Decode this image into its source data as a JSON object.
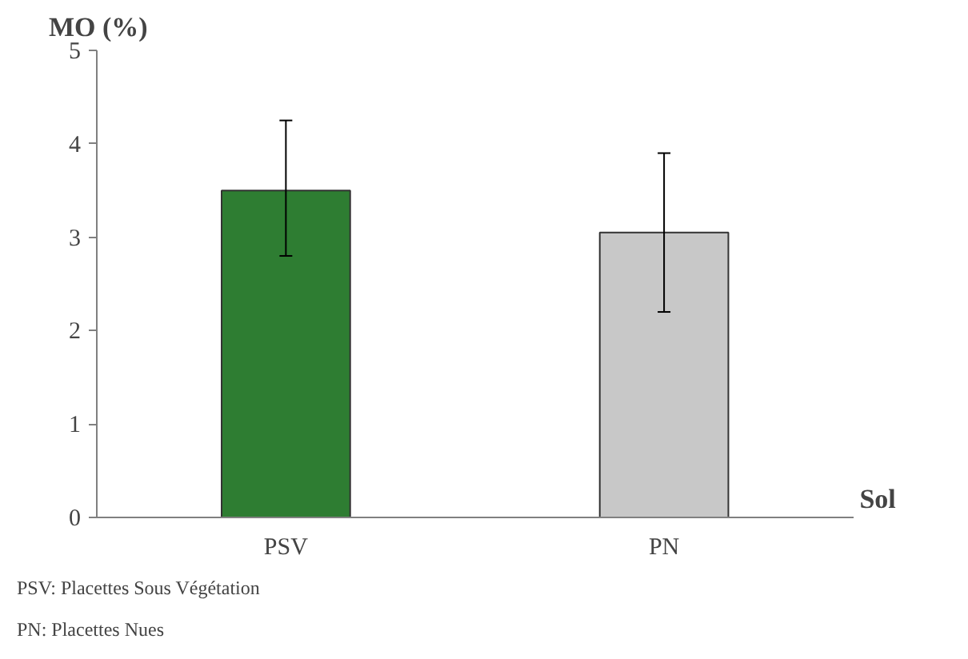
{
  "chart_data": {
    "type": "bar",
    "ylabel": "MO (%)",
    "xlabel": "Sol",
    "categories": [
      "PSV",
      "PN"
    ],
    "values": [
      3.5,
      3.05
    ],
    "colors": [
      "#2e7d32",
      "#c8c8c8"
    ],
    "errors": [
      [
        2.8,
        4.25
      ],
      [
        2.2,
        3.9
      ]
    ],
    "ylim": [
      0,
      5
    ],
    "yticks": [
      0,
      1,
      2,
      3,
      4,
      5
    ],
    "grid": false,
    "annotations": [
      "PSV: Placettes Sous Végétation",
      "PN: Placettes Nues"
    ]
  }
}
